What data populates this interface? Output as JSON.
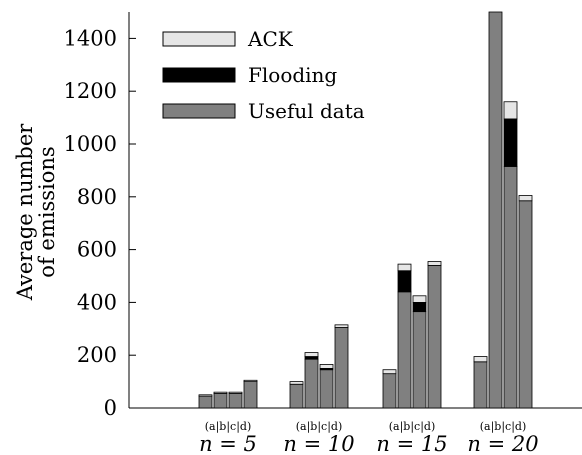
{
  "chart_data": {
    "type": "bar",
    "stacked": true,
    "ylabel_lines": [
      "Average number",
      "of emissions"
    ],
    "ylim": [
      0,
      1500
    ],
    "yticks": [
      0,
      200,
      400,
      600,
      800,
      1000,
      1200,
      1400
    ],
    "groups": [
      {
        "label": "n = 5",
        "sublabel": "(a|b|c|d)"
      },
      {
        "label": "n = 10",
        "sublabel": "(a|b|c|d)"
      },
      {
        "label": "n = 15",
        "sublabel": "(a|b|c|d)"
      },
      {
        "label": "n = 20",
        "sublabel": "(a|b|c|d)"
      }
    ],
    "bars_per_group": [
      "a",
      "b",
      "c",
      "d"
    ],
    "series": [
      {
        "name": "Useful data",
        "color": "#808080",
        "values": [
          [
            45,
            55,
            55,
            100
          ],
          [
            90,
            185,
            145,
            305
          ],
          [
            130,
            440,
            365,
            540
          ],
          [
            175,
            1500,
            915,
            785
          ]
        ]
      },
      {
        "name": "Flooding",
        "color": "#000000",
        "values": [
          [
            0,
            0,
            0,
            0
          ],
          [
            0,
            10,
            5,
            0
          ],
          [
            0,
            80,
            35,
            0
          ],
          [
            0,
            0,
            180,
            0
          ]
        ]
      },
      {
        "name": "ACK",
        "color": "#e6e6e6",
        "values": [
          [
            5,
            5,
            5,
            5
          ],
          [
            10,
            15,
            15,
            10
          ],
          [
            15,
            25,
            25,
            15
          ],
          [
            20,
            0,
            65,
            20
          ]
        ]
      }
    ],
    "legend": {
      "position": "top-left",
      "order": [
        "ACK",
        "Flooding",
        "Useful data"
      ]
    },
    "grid": false
  }
}
